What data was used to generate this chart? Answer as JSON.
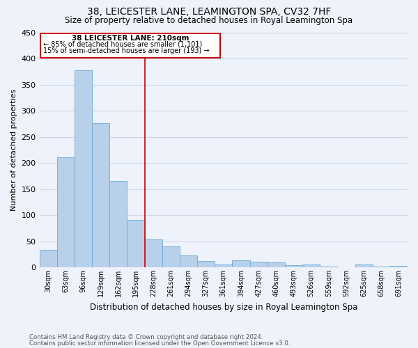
{
  "title": "38, LEICESTER LANE, LEAMINGTON SPA, CV32 7HF",
  "subtitle": "Size of property relative to detached houses in Royal Leamington Spa",
  "xlabel": "Distribution of detached houses by size in Royal Leamington Spa",
  "ylabel": "Number of detached properties",
  "bar_labels": [
    "30sqm",
    "63sqm",
    "96sqm",
    "129sqm",
    "162sqm",
    "195sqm",
    "228sqm",
    "261sqm",
    "294sqm",
    "327sqm",
    "361sqm",
    "394sqm",
    "427sqm",
    "460sqm",
    "493sqm",
    "526sqm",
    "559sqm",
    "592sqm",
    "625sqm",
    "658sqm",
    "691sqm"
  ],
  "bar_values": [
    33,
    211,
    378,
    276,
    166,
    91,
    54,
    40,
    23,
    12,
    6,
    13,
    11,
    10,
    4,
    5,
    1,
    0,
    5,
    1,
    3
  ],
  "bar_color": "#b8d0ea",
  "bar_edge_color": "#6aaad4",
  "grid_color": "#d0d8e8",
  "background_color": "#eef2fa",
  "vline_x": 5.5,
  "vline_color": "#cc0000",
  "annotation_title": "38 LEICESTER LANE: 210sqm",
  "annotation_line1": "← 85% of detached houses are smaller (1,101)",
  "annotation_line2": "15% of semi-detached houses are larger (193) →",
  "annotation_box_color": "#cc0000",
  "ylim": [
    0,
    450
  ],
  "yticks": [
    0,
    50,
    100,
    150,
    200,
    250,
    300,
    350,
    400,
    450
  ],
  "footer_line1": "Contains HM Land Registry data © Crown copyright and database right 2024.",
  "footer_line2": "Contains public sector information licensed under the Open Government Licence v3.0."
}
